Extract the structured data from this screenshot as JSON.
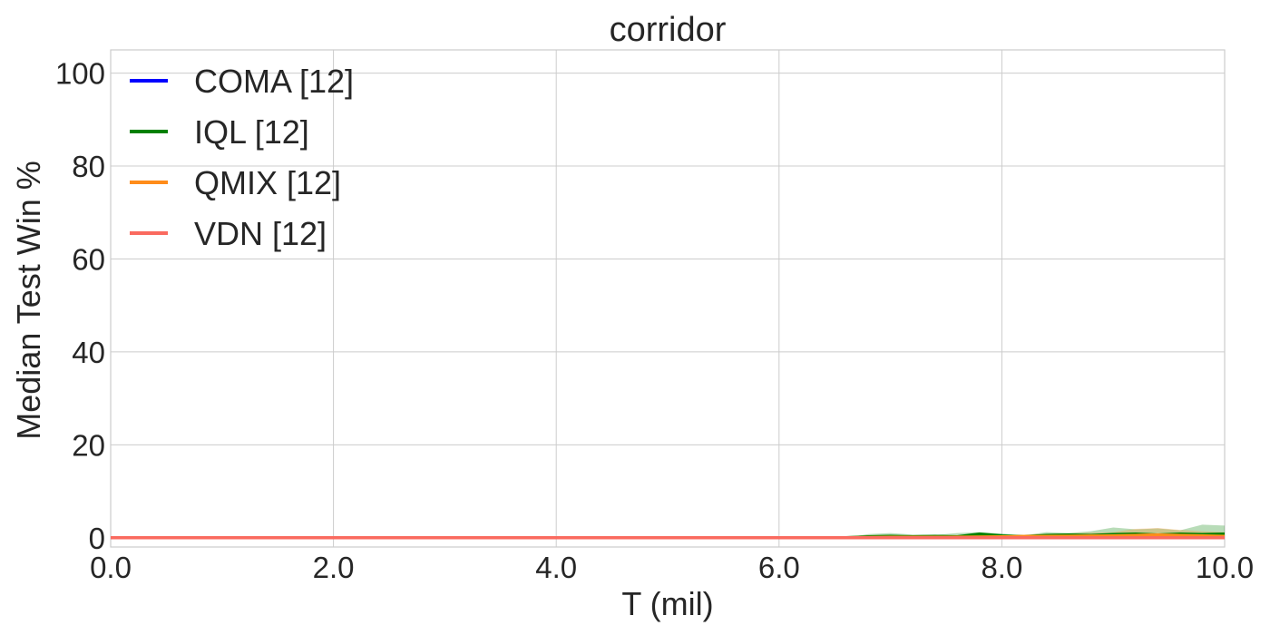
{
  "chart_data": {
    "type": "line",
    "title": "corridor",
    "xlabel": "T (mil)",
    "ylabel": "Median Test Win %",
    "xlim": [
      0,
      10
    ],
    "ylim": [
      -2,
      105
    ],
    "xticks": [
      0,
      2,
      4,
      6,
      8,
      10
    ],
    "xtick_labels": [
      "0.0",
      "2.0",
      "4.0",
      "6.0",
      "8.0",
      "10.0"
    ],
    "yticks": [
      0,
      20,
      40,
      60,
      80,
      100
    ],
    "ytick_labels": [
      "0",
      "20",
      "40",
      "60",
      "80",
      "100"
    ],
    "grid": true,
    "legend_position": "top-left",
    "series": [
      {
        "name": "COMA [12]",
        "color": "#0000ff",
        "x": [
          0,
          10
        ],
        "values": [
          0,
          0
        ],
        "band_upper": [
          0,
          0
        ],
        "band_lower": [
          0,
          0
        ]
      },
      {
        "name": "IQL [12]",
        "color": "#008000",
        "x": [
          0,
          6.6,
          6.8,
          7.0,
          7.2,
          7.4,
          7.6,
          7.8,
          8.0,
          8.2,
          8.4,
          8.6,
          8.8,
          9.0,
          9.2,
          9.4,
          9.6,
          9.8,
          10.0
        ],
        "values": [
          0,
          0,
          0.2,
          0.3,
          0.2,
          0.3,
          0.2,
          0.8,
          0.4,
          0.2,
          0.5,
          0.6,
          0.5,
          0.7,
          0.8,
          0.6,
          0.8,
          0.7,
          0.8
        ],
        "band_upper": [
          0,
          0,
          0.8,
          1.0,
          0.7,
          0.6,
          1.0,
          1.2,
          0.9,
          0.5,
          1.2,
          1.0,
          1.4,
          2.2,
          1.8,
          2.0,
          1.6,
          2.8,
          2.6
        ],
        "band_lower": [
          0,
          0,
          0,
          0,
          0,
          0,
          0,
          0,
          0,
          0,
          0,
          0,
          0,
          0,
          0,
          0,
          0,
          0,
          0
        ]
      },
      {
        "name": "QMIX [12]",
        "color": "#ff8c1a",
        "x": [
          0,
          6.6,
          7.0,
          7.5,
          8.0,
          8.5,
          9.0,
          9.2,
          9.4,
          9.6,
          9.8,
          10.0
        ],
        "values": [
          0,
          0,
          0.1,
          0.1,
          0.2,
          0.3,
          0.4,
          0.5,
          0.6,
          0.5,
          0.4,
          0.3
        ],
        "band_upper": [
          0,
          0,
          0.4,
          0.5,
          0.6,
          0.9,
          1.2,
          1.9,
          2.1,
          1.7,
          1.4,
          1.2
        ],
        "band_lower": [
          0,
          0,
          0,
          0,
          0,
          0,
          0,
          0,
          0,
          0,
          0,
          0
        ]
      },
      {
        "name": "VDN [12]",
        "color": "#fa6a5f",
        "x": [
          0,
          10
        ],
        "values": [
          0,
          0
        ],
        "band_upper": [
          0,
          0
        ],
        "band_lower": [
          0,
          0
        ]
      }
    ]
  }
}
